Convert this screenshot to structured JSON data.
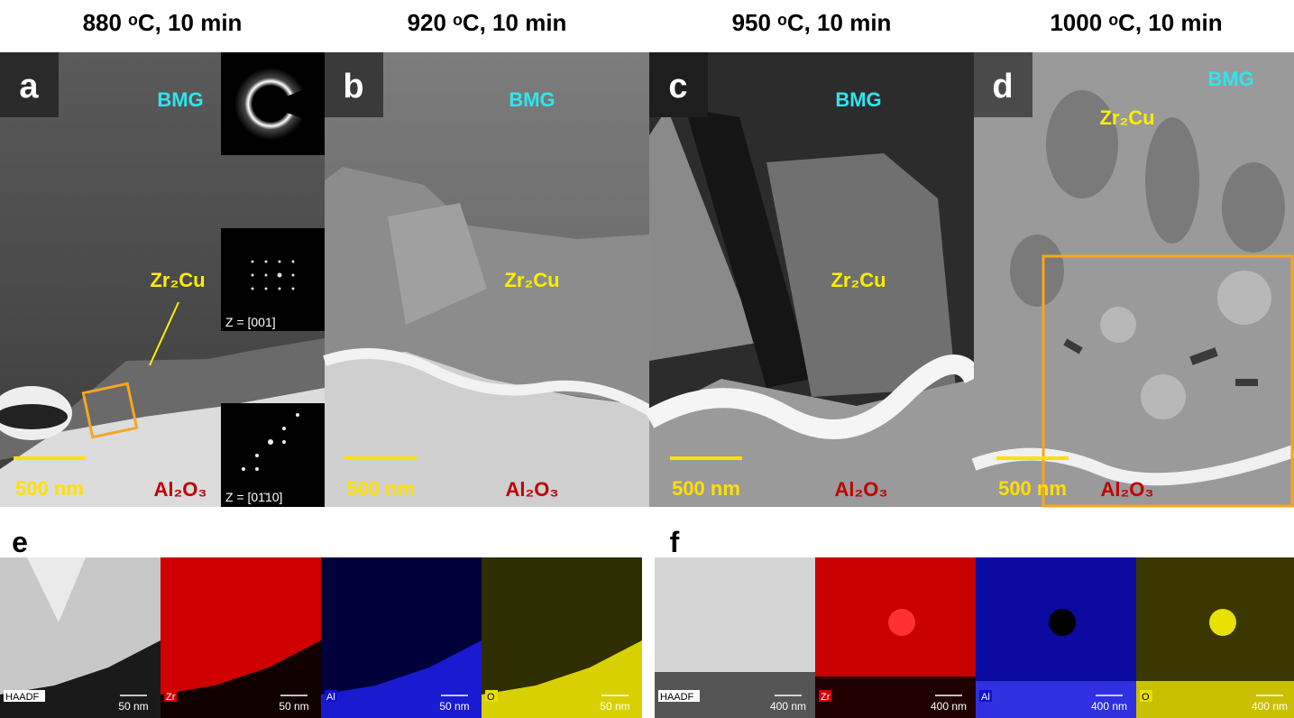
{
  "panels": [
    {
      "letter": "a",
      "title": "880 ᵒC, 10 min",
      "matrix": "BMG",
      "phase": "Zr₂Cu",
      "substrate": "Al₂O₃",
      "scale_bar": "500 nm"
    },
    {
      "letter": "b",
      "title": "920 ᵒC, 10 min",
      "matrix": "BMG",
      "phase": "Zr₂Cu",
      "substrate": "Al₂O₃",
      "scale_bar": "500 nm"
    },
    {
      "letter": "c",
      "title": "950 ᵒC, 10 min",
      "matrix": "BMG",
      "phase": "Zr₂Cu",
      "substrate": "Al₂O₃",
      "scale_bar": "500 nm"
    },
    {
      "letter": "d",
      "title": "1000 ᵒC, 10 min",
      "matrix": "BMG",
      "phase": "Zr₂Cu",
      "substrate": "Al₂O₃",
      "scale_bar": "500 nm"
    }
  ],
  "insets": [
    "Z = [001]",
    "Z = [01̄10]"
  ],
  "maps": [
    {
      "letter": "e",
      "scale_bar": "50 nm",
      "channels": [
        "HAADF",
        "Zr",
        "Al",
        "O"
      ]
    },
    {
      "letter": "f",
      "scale_bar": "400 nm",
      "channels": [
        "HAADF",
        "Zr",
        "Al",
        "O"
      ]
    }
  ]
}
